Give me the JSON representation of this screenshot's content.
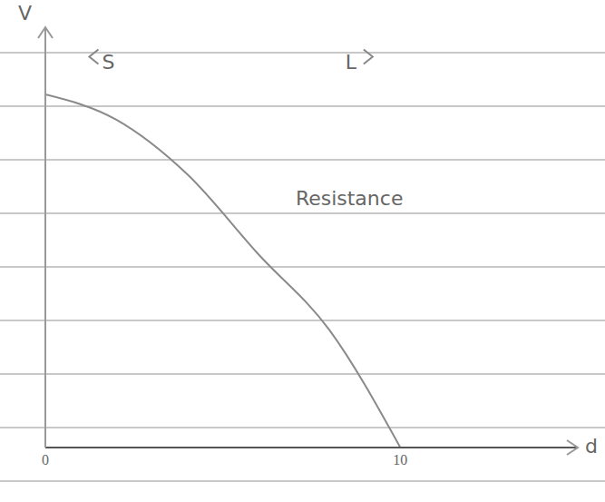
{
  "chart_data": {
    "type": "line",
    "x_label": "d",
    "y_label": "V",
    "x": [
      0,
      2,
      4,
      6,
      8,
      10
    ],
    "values": [
      8.4,
      7.8,
      6.5,
      4.6,
      2.8,
      0
    ],
    "color": "#8a8a8a",
    "xlim": [
      0,
      15
    ],
    "xticks": [
      0,
      10
    ],
    "ylim": [
      0,
      10
    ],
    "yticks": [],
    "tick_labels": "x",
    "grid": false,
    "annotations": [
      "S",
      "L",
      "Resistance"
    ]
  }
}
